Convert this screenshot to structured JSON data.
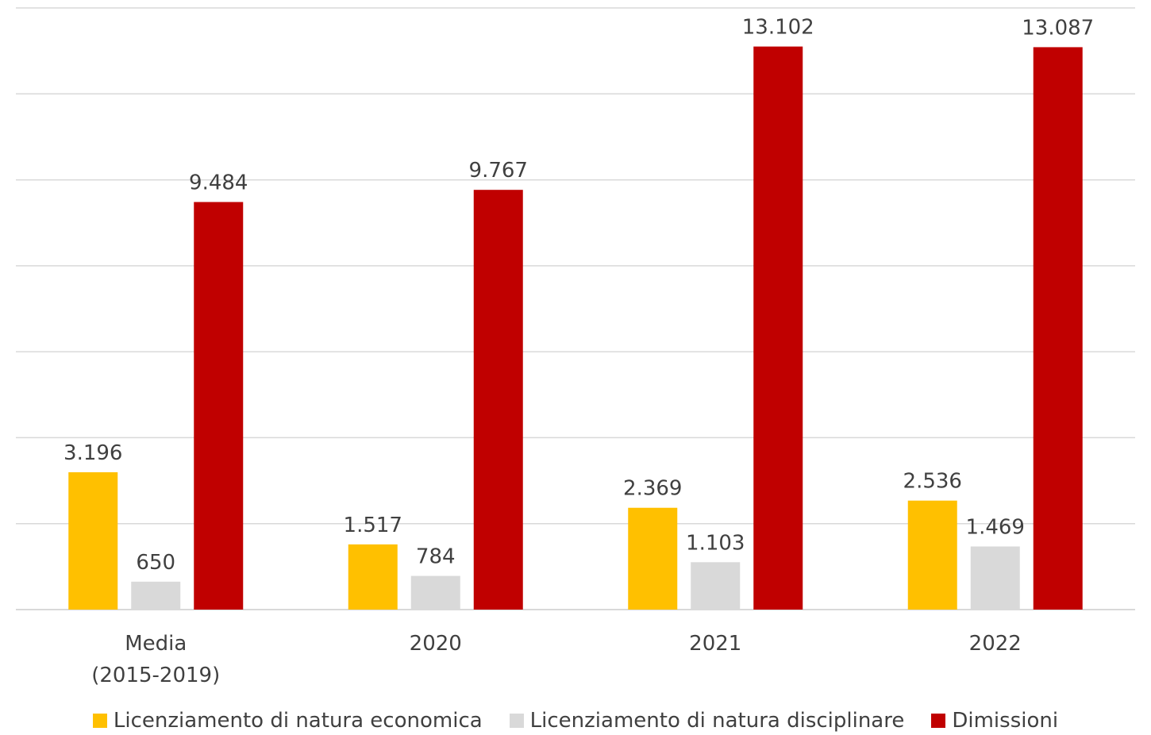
{
  "chart_data": {
    "type": "bar",
    "categories": [
      [
        "Media",
        "(2015-2019)"
      ],
      [
        "2020"
      ],
      [
        "2021"
      ],
      [
        "2022"
      ]
    ],
    "series": [
      {
        "name": "Licenziamento di natura economica",
        "values": [
          3196,
          1517,
          2369,
          2536
        ],
        "labels": [
          "3.196",
          "1.517",
          "2.369",
          "2.536"
        ],
        "color": "#FFC000"
      },
      {
        "name": "Licenziamento di natura disciplinare",
        "values": [
          650,
          784,
          1103,
          1469
        ],
        "labels": [
          "650",
          "784",
          "1.103",
          "1.469"
        ],
        "color": "#D9D9D9"
      },
      {
        "name": "Dimissioni",
        "values": [
          9484,
          9767,
          13102,
          13087
        ],
        "labels": [
          "9.484",
          "9.767",
          "13.102",
          "13.087"
        ],
        "color": "#C00000"
      }
    ],
    "ylim": [
      0,
      14000
    ],
    "gridlines": [
      2000,
      4000,
      6000,
      8000,
      10000,
      12000,
      14000
    ],
    "grid": true,
    "y_tick_labels_shown": false,
    "legend_position": "bottom"
  }
}
